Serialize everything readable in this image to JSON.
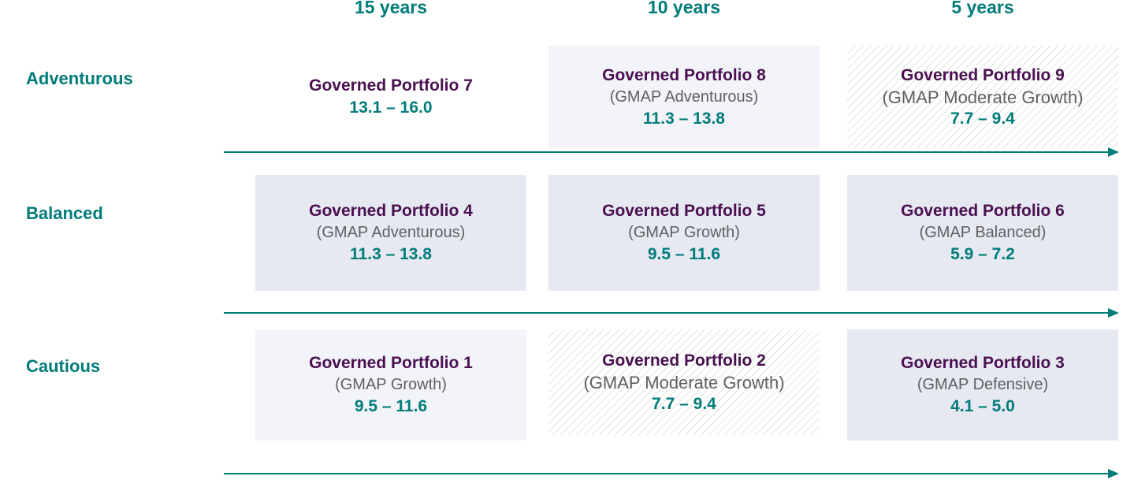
{
  "columns": [
    "15 years",
    "10 years",
    "5 years"
  ],
  "rows": [
    "Adventurous",
    "Balanced",
    "Cautious"
  ],
  "cells": {
    "gp7": {
      "name": "Governed Portfolio 7",
      "sub": "",
      "range": "13.1 – 16.0"
    },
    "gp8": {
      "name": "Governed Portfolio 8",
      "sub": "(GMAP Adventurous)",
      "range": "11.3 – 13.8"
    },
    "gp9": {
      "name": "Governed Portfolio 9",
      "sub": "(GMAP Moderate Growth)",
      "range": "7.7 – 9.4"
    },
    "gp4": {
      "name": "Governed Portfolio 4",
      "sub": "(GMAP Adventurous)",
      "range": "11.3 – 13.8"
    },
    "gp5": {
      "name": "Governed Portfolio 5",
      "sub": "(GMAP Growth)",
      "range": "9.5 – 11.6"
    },
    "gp6": {
      "name": "Governed Portfolio 6",
      "sub": "(GMAP Balanced)",
      "range": "5.9 – 7.2"
    },
    "gp1": {
      "name": "Governed Portfolio 1",
      "sub": "(GMAP Growth)",
      "range": "9.5 – 11.6"
    },
    "gp2": {
      "name": "Governed Portfolio 2",
      "sub": "(GMAP Moderate Growth)",
      "range": "7.7 – 9.4"
    },
    "gp3": {
      "name": "Governed Portfolio 3",
      "sub": "(GMAP Defensive)",
      "range": "4.1 – 5.0"
    }
  },
  "colors": {
    "teal": "#007c7a",
    "purple": "#4a1050",
    "grey_text": "#606060"
  }
}
